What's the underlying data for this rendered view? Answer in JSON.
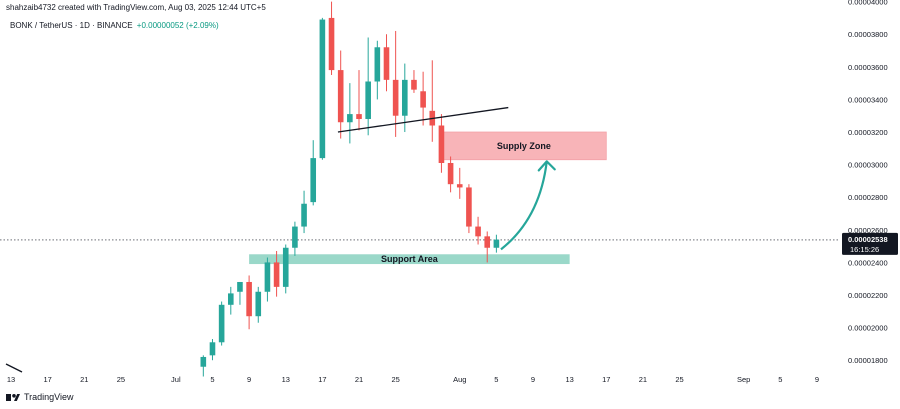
{
  "header": {
    "created_by": "shahzaib4732 created with TradingView.com, Aug 03, 2025 12:44 UTC+5"
  },
  "symbol": {
    "title": "BONK / TetherUS · 1D · BINANCE",
    "change": "+0.00000052 (+2.09%)"
  },
  "brand": {
    "name": "TradingView",
    "logo_icon": "tradingview-logo-icon"
  },
  "colors": {
    "up": "#26a69a",
    "down": "#ef5350",
    "supply_zone": "#f8b4b8",
    "support_zone": "#9ad8c9",
    "arrow": "#26a69a",
    "trendline": "#131722",
    "price_label_bg": "#131722"
  },
  "chart_data": {
    "type": "candlestick",
    "y_tick_labels": [
      "0.00004000",
      "0.00003800",
      "0.00003600",
      "0.00003400",
      "0.00003200",
      "0.00003000",
      "0.00002800",
      "0.00002600",
      "0.00002400",
      "0.00002200",
      "0.00002000",
      "0.00001800"
    ],
    "y_ticks": [
      4e-05,
      3.8e-05,
      3.6e-05,
      3.4e-05,
      3.2e-05,
      3e-05,
      2.8e-05,
      2.6e-05,
      2.4e-05,
      2.2e-05,
      2e-05,
      1.8e-05
    ],
    "ylim": [
      1.74e-05,
      4.01e-05
    ],
    "x_ticks": [
      {
        "label": "13",
        "day": 0
      },
      {
        "label": "17",
        "day": 4
      },
      {
        "label": "21",
        "day": 8
      },
      {
        "label": "25",
        "day": 12
      },
      {
        "label": "Jul",
        "day": 18
      },
      {
        "label": "5",
        "day": 22
      },
      {
        "label": "9",
        "day": 26
      },
      {
        "label": "13",
        "day": 30
      },
      {
        "label": "17",
        "day": 34
      },
      {
        "label": "21",
        "day": 38
      },
      {
        "label": "25",
        "day": 42
      },
      {
        "label": "Aug",
        "day": 49
      },
      {
        "label": "5",
        "day": 53
      },
      {
        "label": "9",
        "day": 57
      },
      {
        "label": "13",
        "day": 61
      },
      {
        "label": "17",
        "day": 65
      },
      {
        "label": "21",
        "day": 69
      },
      {
        "label": "25",
        "day": 73
      },
      {
        "label": "Sep",
        "day": 80
      },
      {
        "label": "5",
        "day": 84
      },
      {
        "label": "9",
        "day": 88
      }
    ],
    "xlim": [
      -1.2,
      90.3
    ],
    "candles": [
      {
        "day": 21,
        "o": 1.76e-05,
        "h": 1.83e-05,
        "l": 1.7e-05,
        "c": 1.82e-05
      },
      {
        "day": 22,
        "o": 1.83e-05,
        "h": 1.93e-05,
        "l": 1.8e-05,
        "c": 1.91e-05
      },
      {
        "day": 23,
        "o": 1.91e-05,
        "h": 2.16e-05,
        "l": 1.89e-05,
        "c": 2.14e-05
      },
      {
        "day": 24,
        "o": 2.14e-05,
        "h": 2.25e-05,
        "l": 2.08e-05,
        "c": 2.21e-05
      },
      {
        "day": 25,
        "o": 2.22e-05,
        "h": 2.28e-05,
        "l": 2.14e-05,
        "c": 2.28e-05
      },
      {
        "day": 26,
        "o": 2.28e-05,
        "h": 2.32e-05,
        "l": 1.99e-05,
        "c": 2.07e-05
      },
      {
        "day": 27,
        "o": 2.07e-05,
        "h": 2.25e-05,
        "l": 2.03e-05,
        "c": 2.22e-05
      },
      {
        "day": 28,
        "o": 2.22e-05,
        "h": 2.43e-05,
        "l": 2.16e-05,
        "c": 2.4e-05
      },
      {
        "day": 29,
        "o": 2.4e-05,
        "h": 2.47e-05,
        "l": 2.19e-05,
        "c": 2.25e-05
      },
      {
        "day": 30,
        "o": 2.25e-05,
        "h": 2.51e-05,
        "l": 2.21e-05,
        "c": 2.49e-05
      },
      {
        "day": 31,
        "o": 2.49e-05,
        "h": 2.65e-05,
        "l": 2.44e-05,
        "c": 2.62e-05
      },
      {
        "day": 32,
        "o": 2.62e-05,
        "h": 2.84e-05,
        "l": 2.58e-05,
        "c": 2.76e-05
      },
      {
        "day": 33,
        "o": 2.77e-05,
        "h": 3.15e-05,
        "l": 2.75e-05,
        "c": 3.04e-05
      },
      {
        "day": 34,
        "o": 3.04e-05,
        "h": 3.9e-05,
        "l": 3.03e-05,
        "c": 3.89e-05
      },
      {
        "day": 35,
        "o": 3.9e-05,
        "h": 4e-05,
        "l": 3.55e-05,
        "c": 3.58e-05
      },
      {
        "day": 36,
        "o": 3.58e-05,
        "h": 3.7e-05,
        "l": 3.16e-05,
        "c": 3.26e-05
      },
      {
        "day": 37,
        "o": 3.26e-05,
        "h": 3.5e-05,
        "l": 3.13e-05,
        "c": 3.31e-05
      },
      {
        "day": 38,
        "o": 3.31e-05,
        "h": 3.58e-05,
        "l": 3.21e-05,
        "c": 3.28e-05
      },
      {
        "day": 39,
        "o": 3.28e-05,
        "h": 3.78e-05,
        "l": 3.18e-05,
        "c": 3.51e-05
      },
      {
        "day": 40,
        "o": 3.51e-05,
        "h": 3.76e-05,
        "l": 3.4e-05,
        "c": 3.72e-05
      },
      {
        "day": 41,
        "o": 3.72e-05,
        "h": 3.8e-05,
        "l": 3.45e-05,
        "c": 3.52e-05
      },
      {
        "day": 42,
        "o": 3.52e-05,
        "h": 3.82e-05,
        "l": 3.17e-05,
        "c": 3.3e-05
      },
      {
        "day": 43,
        "o": 3.3e-05,
        "h": 3.62e-05,
        "l": 3.2e-05,
        "c": 3.52e-05
      },
      {
        "day": 44,
        "o": 3.52e-05,
        "h": 3.58e-05,
        "l": 3.44e-05,
        "c": 3.46e-05
      },
      {
        "day": 45,
        "o": 3.45e-05,
        "h": 3.57e-05,
        "l": 3.24e-05,
        "c": 3.35e-05
      },
      {
        "day": 46,
        "o": 3.33e-05,
        "h": 3.64e-05,
        "l": 3.14e-05,
        "c": 3.24e-05
      },
      {
        "day": 47,
        "o": 3.24e-05,
        "h": 3.31e-05,
        "l": 2.95e-05,
        "c": 3.01e-05
      },
      {
        "day": 48,
        "o": 3.01e-05,
        "h": 3.05e-05,
        "l": 2.83e-05,
        "c": 2.88e-05
      },
      {
        "day": 49,
        "o": 2.88e-05,
        "h": 2.98e-05,
        "l": 2.79e-05,
        "c": 2.86e-05
      },
      {
        "day": 50,
        "o": 2.86e-05,
        "h": 2.88e-05,
        "l": 2.58e-05,
        "c": 2.62e-05
      },
      {
        "day": 51,
        "o": 2.62e-05,
        "h": 2.68e-05,
        "l": 2.51e-05,
        "c": 2.56e-05
      },
      {
        "day": 52,
        "o": 2.56e-05,
        "h": 2.59e-05,
        "l": 2.4e-05,
        "c": 2.49e-05
      },
      {
        "day": 53,
        "o": 2.49e-05,
        "h": 2.57e-05,
        "l": 2.46e-05,
        "c": 2.54e-05
      }
    ],
    "current_price": {
      "value": 2.538e-05,
      "label": "0.00002538",
      "countdown": "16:15:26"
    },
    "annotations": {
      "supply_zone": {
        "label": "Supply Zone",
        "y_top": 3.2e-05,
        "y_bottom": 3.03e-05,
        "day_start": 47,
        "day_end": 65
      },
      "support_area": {
        "label": "Support Area",
        "y_top": 2.45e-05,
        "y_bottom": 2.39e-05,
        "day_start": 26,
        "day_end": 61
      },
      "trendline": {
        "from": {
          "day": 35.7,
          "y": 3.2e-05
        },
        "to": {
          "day": 54.3,
          "y": 3.35e-05
        }
      },
      "arrow": {
        "from": {
          "day": 53.5,
          "y": 2.48e-05
        },
        "to": {
          "day": 58.5,
          "y": 3.02e-05
        }
      }
    }
  }
}
